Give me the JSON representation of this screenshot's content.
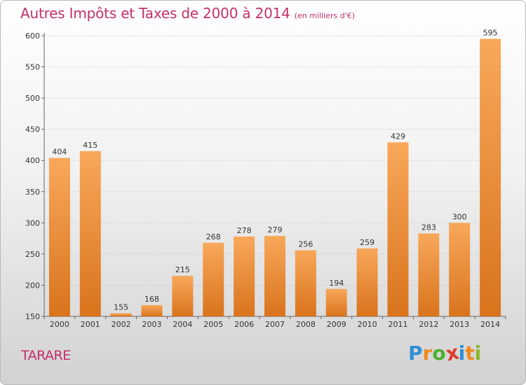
{
  "title": "Autres Impôts et Taxes de 2000 à 2014",
  "title_unit": "(en milliers d'€)",
  "location_label": "TARARE",
  "logo": {
    "letters": [
      "P",
      "r",
      "o",
      "x",
      "i",
      "t",
      "i"
    ],
    "colors": [
      "#2e8fd6",
      "#f08a1d",
      "#4caf2e",
      "#e23b2e",
      "#2e8fd6",
      "#f08a1d",
      "#8ab82c"
    ]
  },
  "colors": {
    "title": "#c3306a",
    "bar_light": "#f8a85a",
    "bar_dark": "#d9731c"
  },
  "chart_data": {
    "type": "bar",
    "title": "Autres Impôts et Taxes de 2000 à 2014",
    "subtitle": "(en milliers d'€)",
    "categories": [
      "2000",
      "2001",
      "2002",
      "2003",
      "2004",
      "2005",
      "2006",
      "2007",
      "2008",
      "2009",
      "2010",
      "2011",
      "2012",
      "2013",
      "2014"
    ],
    "values": [
      404,
      415,
      155,
      168,
      215,
      268,
      278,
      279,
      256,
      194,
      259,
      429,
      283,
      300,
      595
    ],
    "ylim": [
      150,
      600
    ],
    "yticks": [
      150,
      200,
      250,
      300,
      350,
      400,
      450,
      500,
      550,
      600
    ],
    "grid": true,
    "xlabel": "",
    "ylabel": ""
  }
}
